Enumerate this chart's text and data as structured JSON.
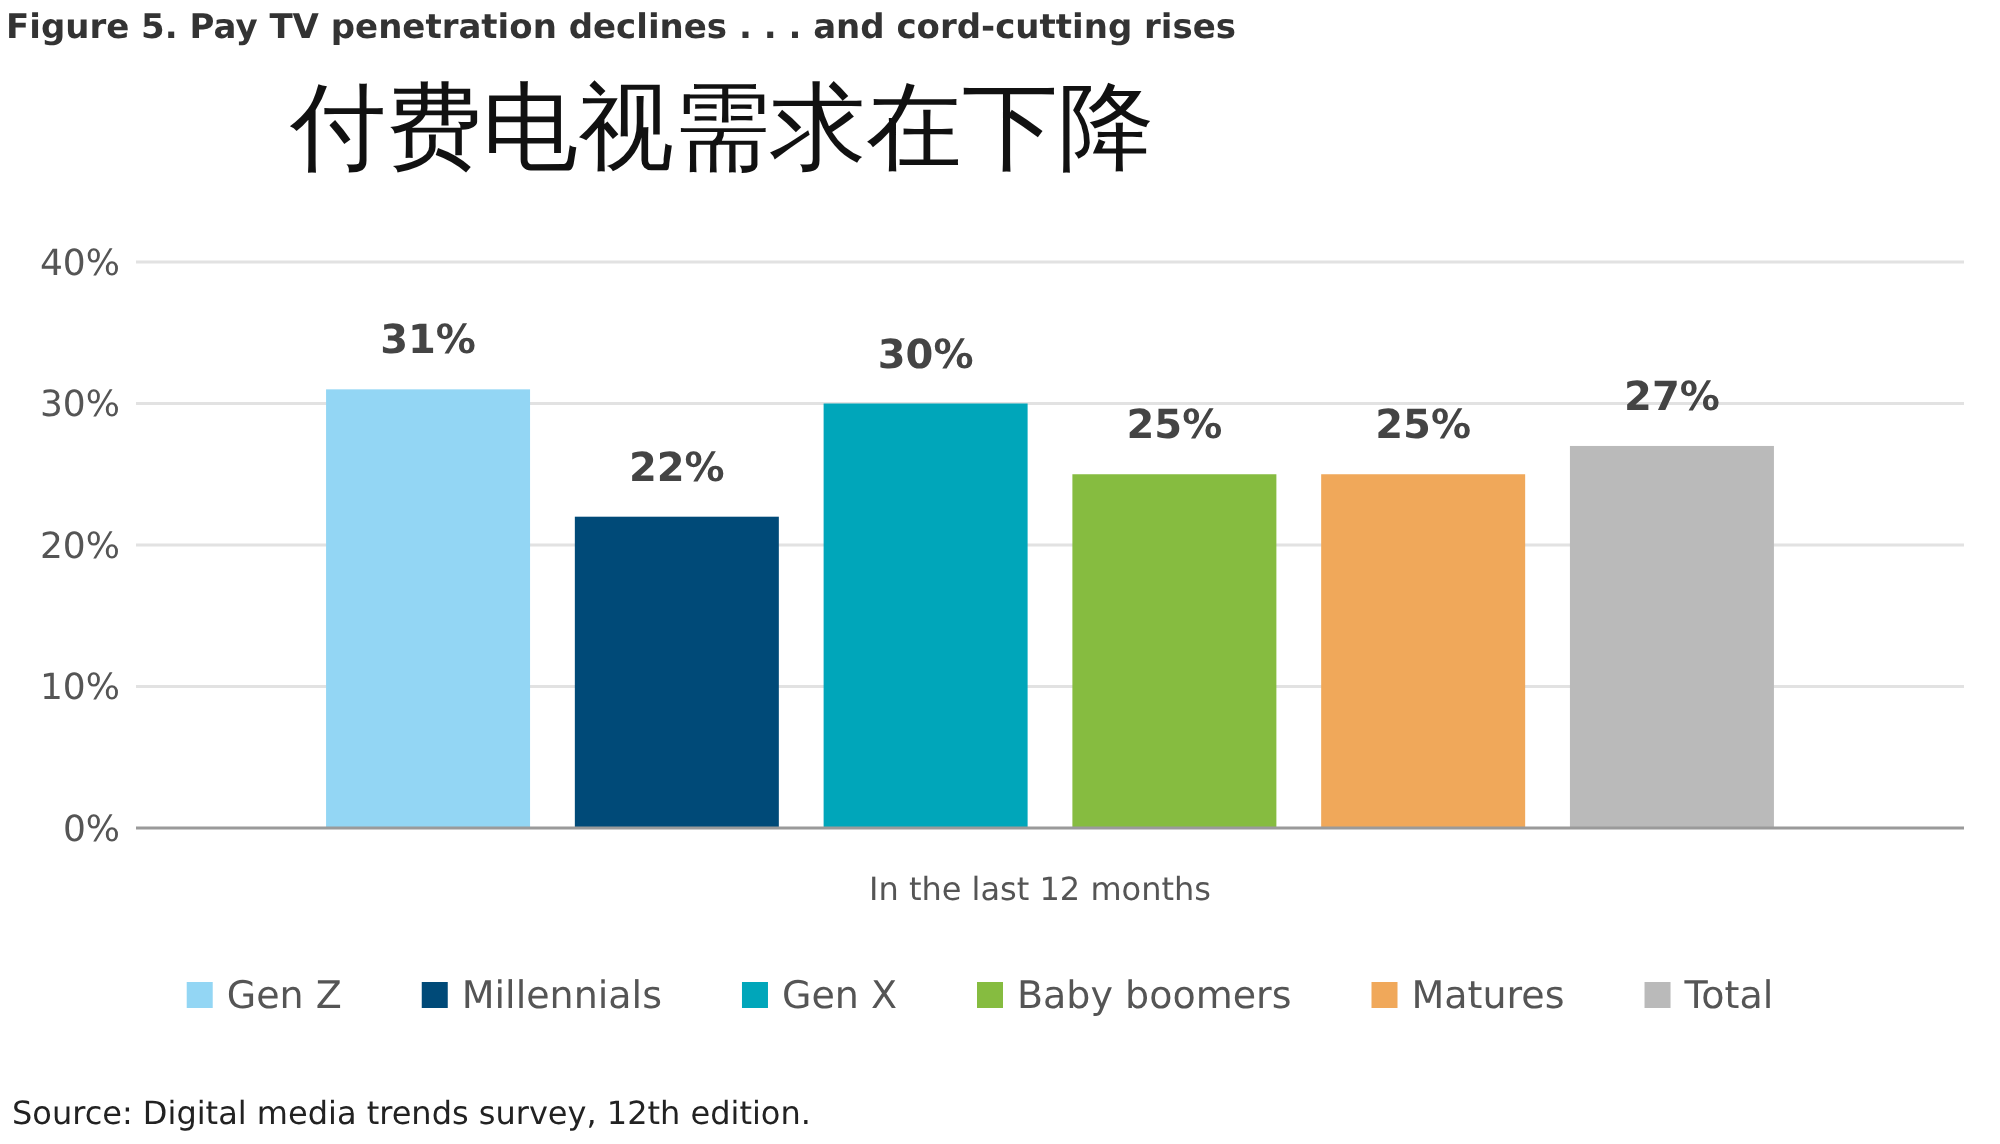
{
  "chart_data": {
    "type": "bar",
    "title": "Figure 5. Pay TV penetration declines . . . and cord-cutting rises",
    "subtitle": "付费电视需求在下降",
    "categories": [
      "In the last 12 months"
    ],
    "series": [
      {
        "name": "Gen Z",
        "color": "#93d6f4",
        "values": [
          31
        ],
        "value_labels": [
          "31%"
        ]
      },
      {
        "name": "Millennials",
        "color": "#004a78",
        "values": [
          22
        ],
        "value_labels": [
          "22%"
        ]
      },
      {
        "name": "Gen X",
        "color": "#00a6ba",
        "values": [
          30
        ],
        "value_labels": [
          "30%"
        ]
      },
      {
        "name": "Baby boomers",
        "color": "#86bc40",
        "values": [
          25
        ],
        "value_labels": [
          "25%"
        ]
      },
      {
        "name": "Matures",
        "color": "#f0a85a",
        "values": [
          25
        ],
        "value_labels": [
          "25%"
        ]
      },
      {
        "name": "Total",
        "color": "#bababa",
        "values": [
          27
        ],
        "value_labels": [
          "27%"
        ]
      }
    ],
    "ylim": [
      0,
      40
    ],
    "yticks": [
      {
        "value": 0,
        "label": "0%"
      },
      {
        "value": 10,
        "label": "10%"
      },
      {
        "value": 20,
        "label": "20%"
      },
      {
        "value": 30,
        "label": "30%"
      },
      {
        "value": 40,
        "label": "40%"
      }
    ],
    "grid": "y",
    "legend": "bottom",
    "annotations": [
      "Source: Digital media trends survey, 12th edition."
    ]
  }
}
